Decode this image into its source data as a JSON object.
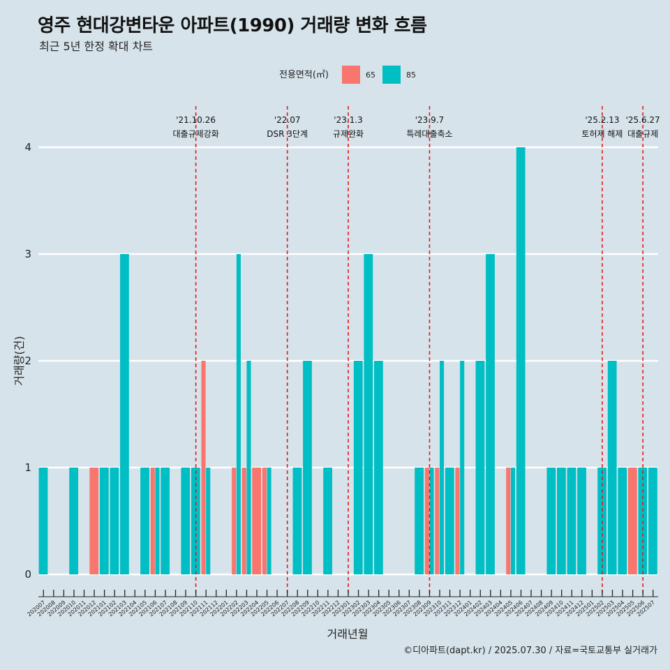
{
  "header": {
    "title": "영주 현대강변타운 아파트(1990) 거래량 변화 흐름",
    "subtitle": "최근 5년 한정 확대 차트"
  },
  "footer": "©디아파트(dapt.kr) / 2025.07.30 / 자료=국토교통부 실거래가",
  "colors": {
    "65": "#f8766d",
    "85": "#00bfc4",
    "background": "#d6e3ea",
    "event_line": "#e41a1c"
  },
  "chart_data": {
    "type": "bar",
    "xlabel": "거래년월",
    "ylabel": "거래량(건)",
    "ylim": [
      0,
      4
    ],
    "yticks": [
      0,
      1,
      2,
      3,
      4
    ],
    "grid": true,
    "legend": {
      "title": "전용면적(㎡)",
      "position": "top",
      "entries": [
        "65",
        "85"
      ]
    },
    "categories": [
      "202007",
      "202008",
      "202009",
      "202010",
      "202011",
      "202012",
      "202101",
      "202102",
      "202103",
      "202104",
      "202105",
      "202106",
      "202107",
      "202108",
      "202109",
      "202110",
      "202111",
      "202112",
      "202201",
      "202202",
      "202203",
      "202204",
      "202205",
      "202206",
      "202207",
      "202208",
      "202209",
      "202210",
      "202211",
      "202212",
      "202301",
      "202302",
      "202303",
      "202304",
      "202305",
      "202306",
      "202307",
      "202308",
      "202309",
      "202310",
      "202311",
      "202312",
      "202401",
      "202402",
      "202403",
      "202404",
      "202405",
      "202406",
      "202407",
      "202408",
      "202409",
      "202410",
      "202411",
      "202412",
      "202501",
      "202502",
      "202503",
      "202504",
      "202505",
      "202506",
      "202507"
    ],
    "series": [
      {
        "name": "65",
        "values": [
          0,
          0,
          0,
          0,
          0,
          1,
          0,
          0,
          0,
          0,
          0,
          1,
          0,
          0,
          0,
          0,
          2,
          0,
          0,
          1,
          1,
          1,
          1,
          0,
          0,
          0,
          0,
          0,
          0,
          0,
          0,
          0,
          0,
          0,
          0,
          0,
          0,
          0,
          1,
          1,
          0,
          1,
          0,
          0,
          0,
          0,
          1,
          0,
          0,
          0,
          0,
          0,
          0,
          0,
          0,
          0,
          0,
          0,
          1,
          0,
          0
        ]
      },
      {
        "name": "85",
        "values": [
          1,
          0,
          0,
          1,
          0,
          0,
          1,
          1,
          3,
          0,
          1,
          1,
          1,
          0,
          1,
          1,
          1,
          0,
          0,
          3,
          2,
          0,
          1,
          0,
          0,
          1,
          2,
          0,
          1,
          0,
          0,
          2,
          3,
          2,
          0,
          0,
          0,
          1,
          1,
          2,
          1,
          2,
          0,
          2,
          3,
          0,
          1,
          4,
          0,
          0,
          1,
          1,
          1,
          1,
          0,
          1,
          2,
          1,
          0,
          1,
          1
        ]
      }
    ],
    "events": [
      {
        "date": "'21.10.26",
        "label": "대출규제강화",
        "x": "202110"
      },
      {
        "date": "'22.07",
        "label": "DSR 3단계",
        "x": "202207"
      },
      {
        "date": "'23.1.3",
        "label": "규제완화",
        "x": "202301"
      },
      {
        "date": "'23.9.7",
        "label": "특례대출축소",
        "x": "202309"
      },
      {
        "date": "'25.2.13",
        "label": "토허제 해제",
        "x": "202502"
      },
      {
        "date": "'25.6.27",
        "label": "대출규제",
        "x": "202506"
      }
    ]
  }
}
